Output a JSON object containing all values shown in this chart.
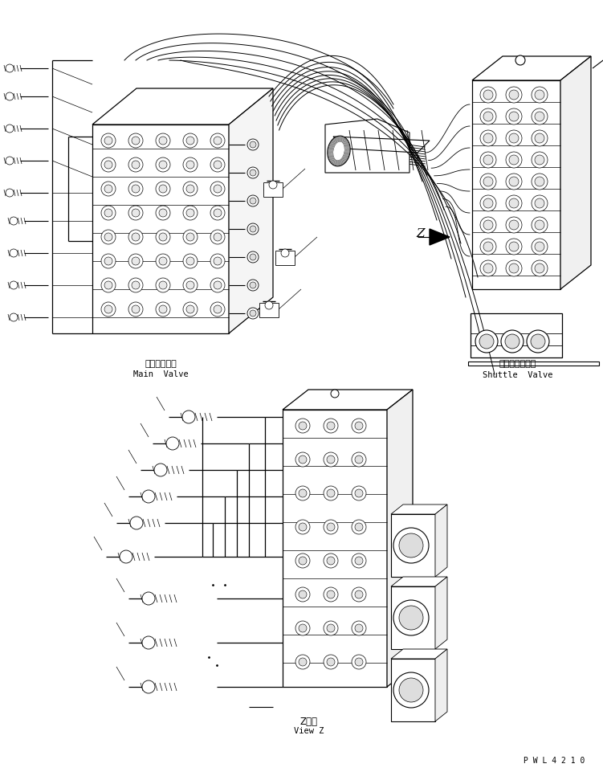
{
  "bg_color": "#ffffff",
  "lc": "#000000",
  "labels": {
    "main_valve_jp": "メインバルブ",
    "main_valve_en": "Main  Valve",
    "shuttle_valve_jp": "シャトルバルブ",
    "shuttle_valve_en": "Shuttle  Valve",
    "view_z_jp": "Z　視",
    "view_z_en": "View Z",
    "z_marker": "Z",
    "part_number": "P W L 4 2 1 0"
  },
  "fig_w": 7.51,
  "fig_h": 9.61,
  "dpi": 100
}
